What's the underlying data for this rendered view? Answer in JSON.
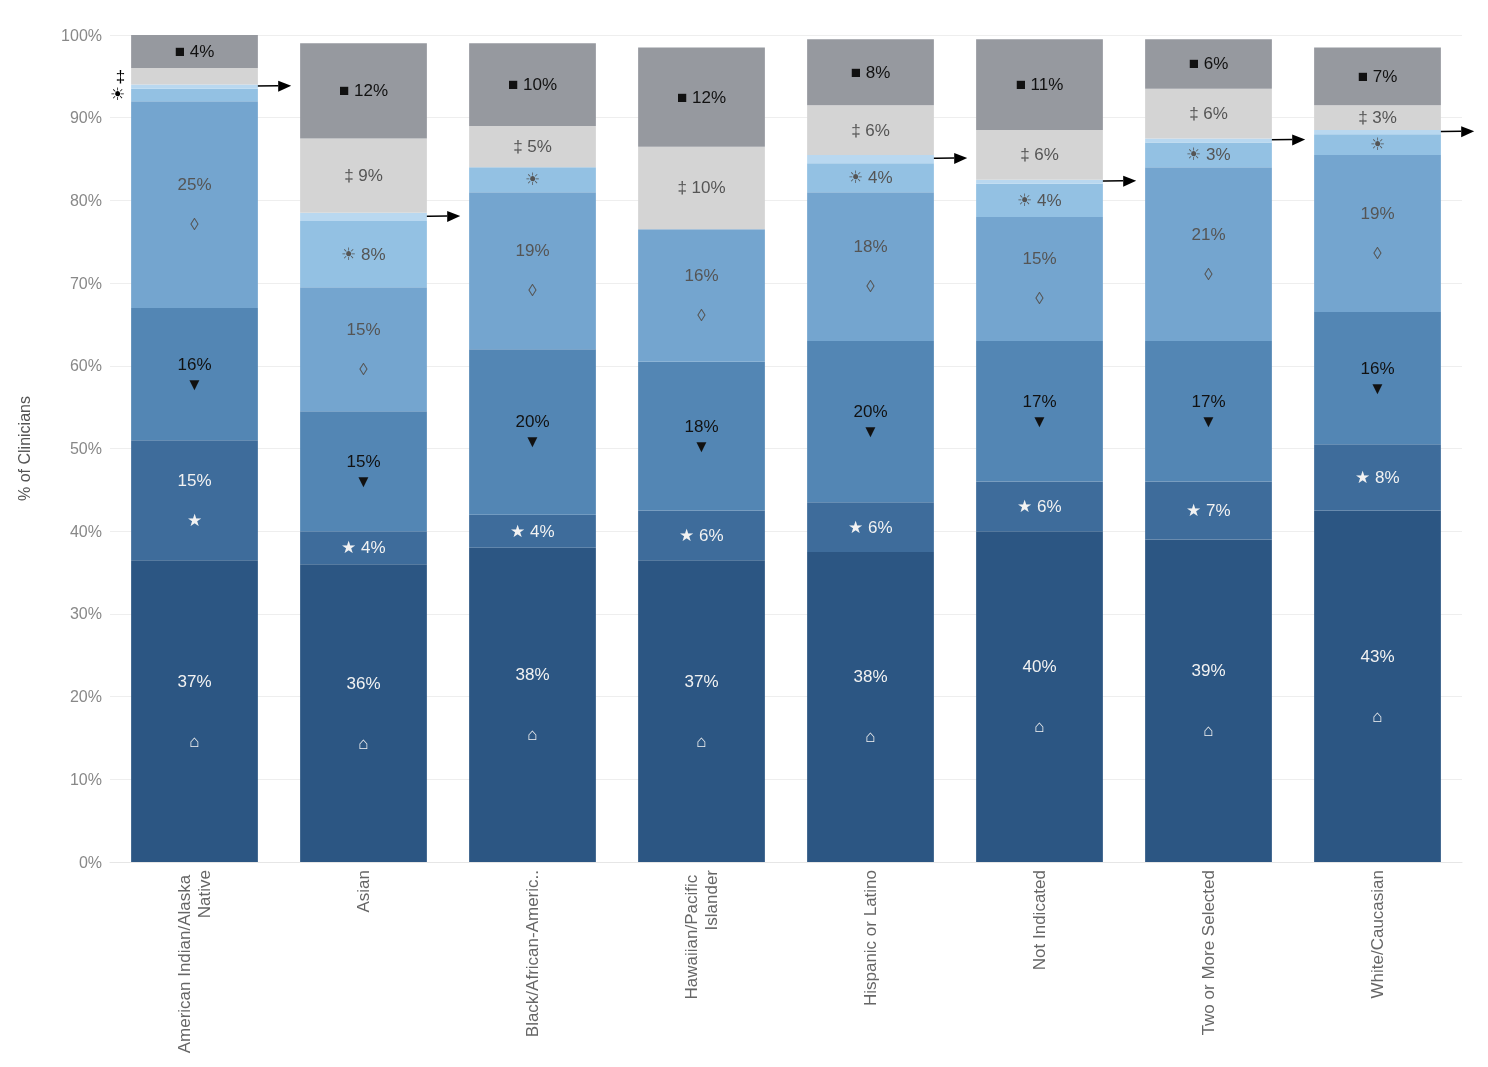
{
  "chart_data": {
    "type": "bar",
    "stacked": true,
    "ylabel": "% of Clinicians",
    "grid": "y",
    "categories": [
      "American Indian/Alaska Native",
      "Asian",
      "Black/African-Americ..",
      "Hawaiian/Pacific Islander",
      "Hispanic or Latino",
      "Not Indicated",
      "Two or More Selected",
      "White/Caucasian"
    ],
    "ylim": [
      0,
      100
    ],
    "yticks": [
      {
        "value": 0,
        "label": "0%"
      },
      {
        "value": 10,
        "label": "10%"
      },
      {
        "value": 20,
        "label": "20%"
      },
      {
        "value": 30,
        "label": "30%"
      },
      {
        "value": 40,
        "label": "40%"
      },
      {
        "value": 50,
        "label": "50%"
      },
      {
        "value": 60,
        "label": "60%"
      },
      {
        "value": 70,
        "label": "70%"
      },
      {
        "value": 80,
        "label": "80%"
      },
      {
        "value": 90,
        "label": "90%"
      },
      {
        "value": 100,
        "label": "100%"
      }
    ],
    "series": [
      {
        "color": "#2c5683",
        "values": [
          36.5,
          36,
          38,
          36.5,
          37.5,
          40,
          39,
          42.5
        ],
        "value_labels": [
          "37%\n\n\n⌂",
          "36%\n\n\n⌂",
          "38%\n\n\n⌂",
          "37%\n\n\n⌂",
          "38%\n\n\n⌂",
          "40%\n\n\n⌂",
          "39%\n\n\n⌂",
          "43%\n\n\n⌂"
        ]
      },
      {
        "color": "#3e6c9b",
        "values": [
          14.5,
          4,
          4,
          6,
          6,
          6,
          7,
          8
        ],
        "value_labels": [
          "15%\n\n★",
          "★ 4%",
          "★ 4%",
          "★ 6%",
          "★ 6%",
          "★ 6%",
          "★ 7%",
          "★ 8%"
        ]
      },
      {
        "color": "#5386b4",
        "values": [
          16,
          14.5,
          20,
          18,
          19.5,
          17,
          17,
          16
        ],
        "value_labels": [
          "16%\n▼",
          "15%\n▼",
          "20%\n▼",
          "18%\n▼",
          "20%\n▼",
          "17%\n▼",
          "17%\n▼",
          "16%\n▼"
        ]
      },
      {
        "color": "#74a5cf",
        "values": [
          25,
          15,
          19,
          16,
          18,
          15,
          21,
          19
        ],
        "value_labels": [
          "25%\n\n◊",
          "15%\n\n◊",
          "19%\n\n◊",
          "16%\n\n◊",
          "18%\n\n◊",
          "15%\n\n◊",
          "21%\n\n◊",
          "19%\n\n◊"
        ]
      },
      {
        "color": "#93c1e3",
        "values": [
          1.5,
          8,
          3,
          null,
          3.5,
          4,
          3,
          2.5
        ],
        "value_labels": [
          "☀",
          "☀ 8%",
          "☀",
          null,
          "☀ 4%",
          "☀ 4%",
          "☀ 3%",
          "☀"
        ]
      },
      {
        "color": "#b9d8f0",
        "values": [
          0.5,
          1,
          null,
          null,
          1,
          0.5,
          0.5,
          0.5
        ],
        "value_labels": [
          null,
          null,
          null,
          null,
          null,
          null,
          null,
          null
        ]
      },
      {
        "color": "#d4d4d4",
        "values": [
          2,
          9,
          5,
          10,
          6,
          6,
          6,
          3
        ],
        "value_labels": [
          "‡",
          "‡ 9%",
          "‡ 5%",
          "‡ 10%",
          "‡ 6%",
          "‡ 6%",
          "‡ 6%",
          "‡ 3%"
        ]
      },
      {
        "color": "#96999f",
        "values": [
          4,
          11.5,
          10,
          12,
          8,
          11,
          6,
          7
        ],
        "value_labels": [
          "■ 4%",
          "■ 12%",
          "■ 10%",
          "■ 12%",
          "■ 8%",
          "■ 11%",
          "■ 6%",
          "■ 7%"
        ]
      }
    ]
  }
}
